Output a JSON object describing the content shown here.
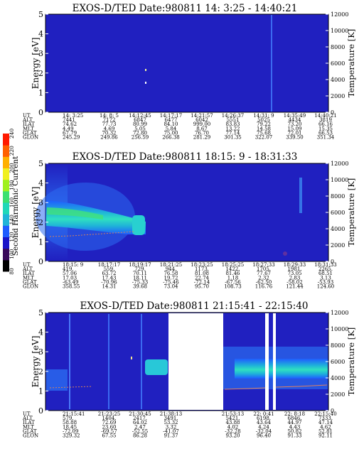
{
  "colorbar": {
    "label": "Second Harmonic Current",
    "ticks": [
      "80",
      "100",
      "120",
      "140",
      "160",
      "180",
      "200",
      "220",
      "240"
    ],
    "colors": [
      "#000000",
      "#3a0a5a",
      "#1a14c8",
      "#1f5cff",
      "#1fb4d8",
      "#20d8b8",
      "#3ce070",
      "#a0f020",
      "#f0f020",
      "#ffb000",
      "#ff6000",
      "#ff1a00"
    ]
  },
  "chart_data": [
    {
      "type": "heatmap",
      "title": "EXOS-D/TED   Date:980811  14: 3:25 - 14:40:21",
      "ylabel": "Energy [eV]",
      "y2label": "Temperature [K]",
      "ylim": [
        0,
        5
      ],
      "y2lim": [
        0,
        12000
      ],
      "yticks": [
        "0",
        "1",
        "2",
        "3",
        "4",
        "5"
      ],
      "y2ticks": [
        "0",
        "2000",
        "4000",
        "6000",
        "8000",
        "10000",
        "12000"
      ],
      "background": "#2020c0",
      "rows": [
        {
          "label": "UT",
          "values": [
            "14: 3:25",
            "14: 8: 5",
            "14:12:45",
            "14:17:17",
            "14:21:57",
            "14:26:37",
            "14:31: 9",
            "14:35:49",
            "14:40:21"
          ]
        },
        {
          "label": "ALT",
          "values": [
            "7441",
            "7172",
            "6847",
            "6477",
            "6042",
            "5551",
            "5025",
            "4434",
            "3819"
          ]
        },
        {
          "label": "ILAT",
          "values": [
            "74.62",
            "77.73",
            "80.99",
            "84.10",
            "999.00",
            "83.83",
            "79.22",
            "73.20",
            "66.16"
          ]
        },
        {
          "label": "MLT",
          "values": [
            "4.49",
            "4.69",
            "5.05",
            "5.84",
            "8.67",
            "13.22",
            "14.58",
            "15.09",
            "15.35"
          ]
        },
        {
          "label": "GLAT",
          "values": [
            "67.79",
            "70.32",
            "72.80",
            "75.00",
            "76.70",
            "77.14",
            "75.68",
            "72.01",
            "66.53"
          ]
        },
        {
          "label": "GLON",
          "values": [
            "245.29",
            "249.86",
            "256.59",
            "266.38",
            "281.29",
            "301.35",
            "322.07",
            "339.50",
            "351.34"
          ]
        }
      ]
    },
    {
      "type": "heatmap",
      "title": "EXOS-D/TED   Date:980811  18:15: 9 - 18:31:33",
      "ylabel": "Energy [eV]",
      "y2label": "Temperature [K]",
      "ylim": [
        0,
        5
      ],
      "y2lim": [
        0,
        12000
      ],
      "yticks": [
        "0",
        "1",
        "2",
        "3",
        "4",
        "5"
      ],
      "y2ticks": [
        "0",
        "2000",
        "4000",
        "6000",
        "8000",
        "10000",
        "12000"
      ],
      "background": "#2020c0",
      "rows": [
        {
          "label": "UT",
          "values": [
            "18:15: 9",
            "18:17:17",
            "18:19:17",
            "18:21:25",
            "18:23:25",
            "18:25:25",
            "18:27:33",
            "18:29:33",
            "18:31:33"
          ]
        },
        {
          "label": "ALT",
          "values": [
            "419.",
            "559.",
            "729.",
            "944.",
            "1173.",
            "1422.",
            "1705.",
            "1981.",
            "2265."
          ]
        },
        {
          "label": "ILAT",
          "values": [
            "57.06",
            "63.72",
            "70.11",
            "76.58",
            "81.08",
            "81.46",
            "77.67",
            "73.05",
            "68.51"
          ]
        },
        {
          "label": "MLT",
          "values": [
            "17.03",
            "17.43",
            "18.11",
            "19.72",
            "22.74",
            "1.18",
            "2.32",
            "2.83",
            "3.13"
          ]
        },
        {
          "label": "GLAT",
          "values": [
            "-63.49",
            "-70.96",
            "-75.33",
            "-75.46",
            "-72.14",
            "-67.56",
            "-62.50",
            "-58.02",
            "-53.93"
          ]
        },
        {
          "label": "GLON",
          "values": [
            "358.55",
            "14.31",
            "39.68",
            "73.04",
            "95.70",
            "108.73",
            "116.76",
            "121.44",
            "124.60"
          ]
        }
      ]
    },
    {
      "type": "heatmap",
      "title": "EXOS-D/TED   Date:980811  21:15:41 - 22:15:40",
      "ylabel": "Energy [eV]",
      "y2label": "Temperature [K]",
      "ylim": [
        0,
        5
      ],
      "y2lim": [
        0,
        12000
      ],
      "yticks": [
        "0",
        "1",
        "2",
        "3",
        "4",
        "5"
      ],
      "y2ticks": [
        "0",
        "2000",
        "4000",
        "6000",
        "8000",
        "10000",
        "12000"
      ],
      "background": "#2020c0",
      "rows": [
        {
          "label": "UT",
          "values": [
            "21:15:41",
            "21:23:25",
            "21:30:45",
            "21:38:13",
            "",
            "21:53:13",
            "22: 0:41",
            "22: 8:18",
            "22:15:40"
          ]
        },
        {
          "label": "ALT",
          "values": [
            "579.",
            "1404.",
            "2417.",
            "3491.",
            "",
            "5421.",
            "6198.",
            "6846.",
            "7333."
          ]
        },
        {
          "label": "ILAT",
          "values": [
            "58.88",
            "72.69",
            "64.02",
            "53.32",
            "",
            "43.88",
            "43.64",
            "44.97",
            "47.14"
          ]
        },
        {
          "label": "MLT",
          "values": [
            "18.45",
            "23.60",
            "2.47",
            "3.32",
            "",
            "4.02",
            "4.24",
            "4.43",
            "4.62"
          ]
        },
        {
          "label": "GLAT",
          "values": [
            "-72.09",
            "-69.57",
            "-52.55",
            "-41.07",
            "",
            "-32.28",
            "-32.04",
            "50.82",
            "52.81"
          ]
        },
        {
          "label": "GLON",
          "values": [
            "329.32",
            "67.55",
            "86.28",
            "91.37",
            "",
            "93.20",
            "96.40",
            "91.33",
            "92.11"
          ]
        }
      ]
    }
  ]
}
